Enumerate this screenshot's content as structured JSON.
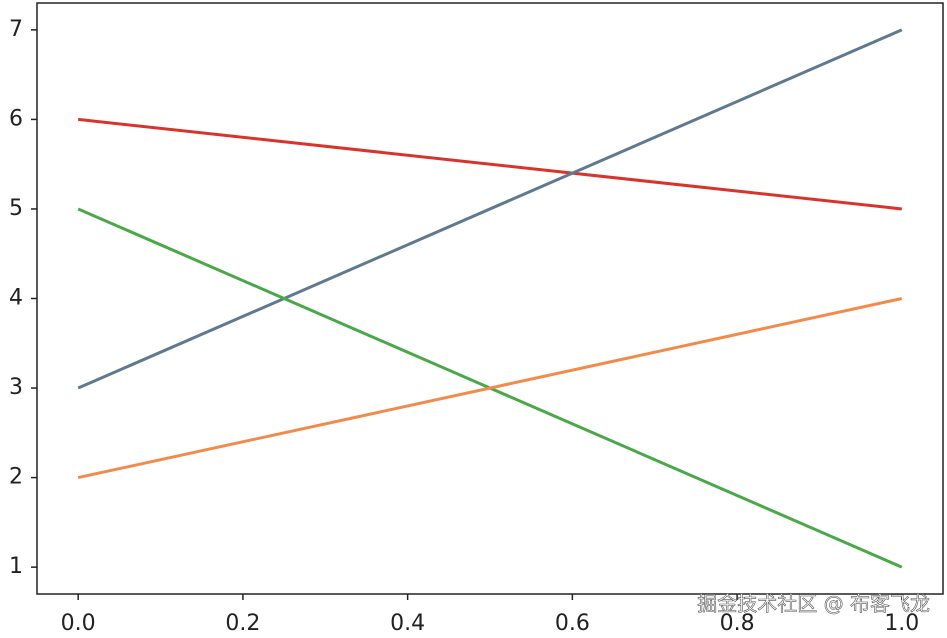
{
  "chart_data": {
    "type": "line",
    "x": [
      0,
      1
    ],
    "series": [
      {
        "color": "#d9342b",
        "values": [
          6,
          5
        ]
      },
      {
        "color": "#5f7a90",
        "values": [
          3,
          7
        ]
      },
      {
        "color": "#4aa84a",
        "values": [
          5,
          1
        ]
      },
      {
        "color": "#f28a4c",
        "values": [
          2,
          4
        ]
      }
    ],
    "xlim": [
      -0.05,
      1.05
    ],
    "xticks": [
      {
        "value": 0,
        "label": "0.0"
      },
      {
        "value": 0.2,
        "label": "0.2"
      },
      {
        "value": 0.4,
        "label": "0.4"
      },
      {
        "value": 0.6,
        "label": "0.6"
      },
      {
        "value": 0.8,
        "label": "0.8"
      },
      {
        "value": 1,
        "label": "1.0"
      }
    ],
    "ylim": [
      0.7,
      7.3
    ],
    "yticks": [
      1,
      2,
      3,
      4,
      5,
      6,
      7
    ],
    "grid": false,
    "watermark": "掘金技术社区 @ 布客飞龙"
  }
}
